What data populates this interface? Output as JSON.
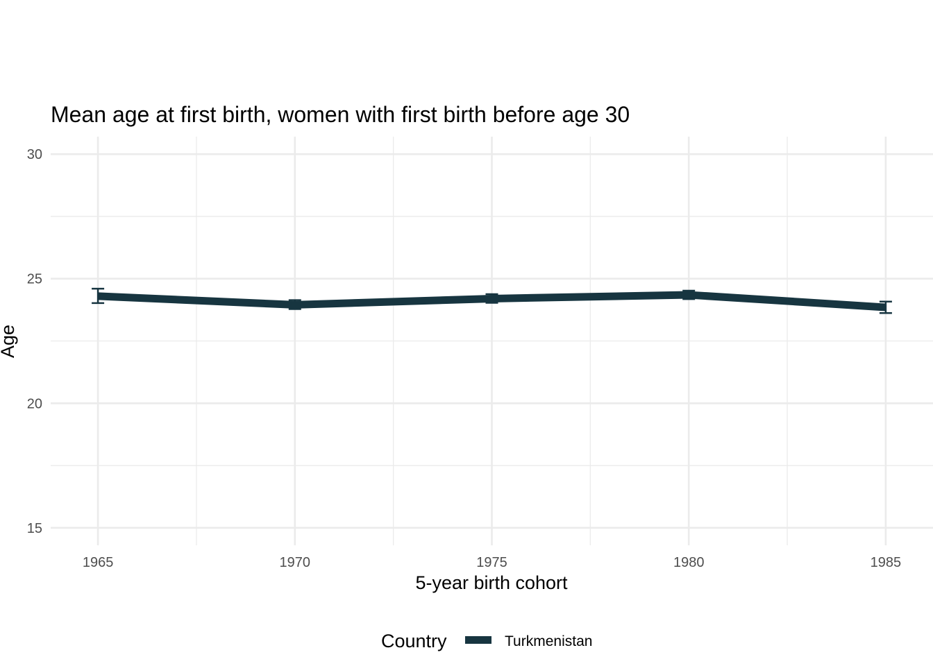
{
  "chart_data": {
    "type": "line",
    "title": "Mean age at first birth, women with first birth before age 30",
    "xlabel": "5-year birth cohort",
    "ylabel": "Age",
    "x": [
      1965,
      1970,
      1975,
      1980,
      1985
    ],
    "x_ticks": [
      "1965",
      "1970",
      "1975",
      "1980",
      "1985"
    ],
    "y_ticks": [
      "15",
      "20",
      "25",
      "30"
    ],
    "xlim": [
      1963.8,
      1986.2
    ],
    "ylim": [
      14.3,
      30.7
    ],
    "grid": true,
    "legend": {
      "title": "Country",
      "position": "bottom"
    },
    "series": [
      {
        "name": "Turkmenistan",
        "color": "#173540",
        "values": [
          24.3,
          23.95,
          24.2,
          24.35,
          23.85
        ],
        "error_low": [
          24.02,
          23.78,
          24.03,
          24.18,
          23.62
        ],
        "error_high": [
          24.6,
          24.14,
          24.38,
          24.52,
          24.08
        ]
      }
    ]
  }
}
